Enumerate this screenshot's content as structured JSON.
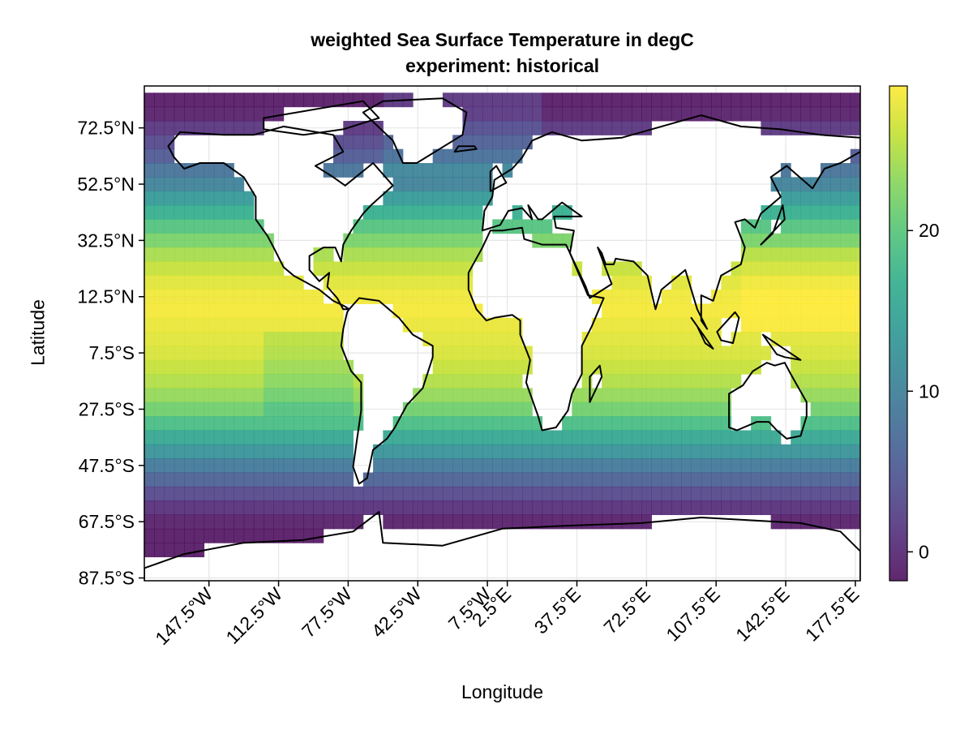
{
  "chart_data": {
    "type": "heatmap",
    "title": "weighted Sea Surface Temperature in degC",
    "subtitle": "experiment: historical",
    "xlabel": "Longitude",
    "ylabel": "Latitude",
    "xlim": [
      -180,
      180
    ],
    "ylim": [
      -90,
      90
    ],
    "x_ticks": [
      -147.5,
      -112.5,
      -77.5,
      -42.5,
      -7.5,
      2.5,
      37.5,
      72.5,
      107.5,
      142.5,
      177.5
    ],
    "x_tick_labels": [
      "147.5°W",
      "112.5°W",
      "77.5°W",
      "42.5°W",
      "7.5°W",
      "2.5°E",
      "37.5°E",
      "72.5°E",
      "107.5°E",
      "142.5°E",
      "177.5°E"
    ],
    "y_ticks": [
      72.5,
      52.5,
      32.5,
      12.5,
      -7.5,
      -27.5,
      -47.5,
      -67.5,
      -87.5
    ],
    "y_tick_labels": [
      "72.5°N",
      "52.5°N",
      "32.5°N",
      "12.5°N",
      "7.5°S",
      "27.5°S",
      "47.5°S",
      "67.5°S",
      "87.5°S"
    ],
    "grid": true,
    "grid_resolution_deg": 5,
    "colormap": "viridis",
    "colorbar": {
      "range": [
        -1.8,
        29
      ],
      "ticks": [
        0,
        10,
        20
      ],
      "tick_labels": [
        "0",
        "10",
        "20"
      ],
      "placement": "right"
    },
    "zonal_mean_sst_degC": [
      {
        "lat": 82.5,
        "value": -1.5
      },
      {
        "lat": 77.5,
        "value": -1.2
      },
      {
        "lat": 72.5,
        "value": 1.0
      },
      {
        "lat": 67.5,
        "value": 3.0
      },
      {
        "lat": 62.5,
        "value": 5.0
      },
      {
        "lat": 57.5,
        "value": 8.0
      },
      {
        "lat": 52.5,
        "value": 10.0
      },
      {
        "lat": 47.5,
        "value": 13.5
      },
      {
        "lat": 42.5,
        "value": 16.5
      },
      {
        "lat": 37.5,
        "value": 19.5
      },
      {
        "lat": 32.5,
        "value": 22.0
      },
      {
        "lat": 27.5,
        "value": 24.5
      },
      {
        "lat": 22.5,
        "value": 26.0
      },
      {
        "lat": 17.5,
        "value": 27.5
      },
      {
        "lat": 12.5,
        "value": 28.3
      },
      {
        "lat": 7.5,
        "value": 28.5
      },
      {
        "lat": 2.5,
        "value": 28.0
      },
      {
        "lat": -2.5,
        "value": 27.5
      },
      {
        "lat": -7.5,
        "value": 27.0
      },
      {
        "lat": -12.5,
        "value": 26.0
      },
      {
        "lat": -17.5,
        "value": 25.0
      },
      {
        "lat": -22.5,
        "value": 23.5
      },
      {
        "lat": -27.5,
        "value": 21.5
      },
      {
        "lat": -32.5,
        "value": 18.5
      },
      {
        "lat": -37.5,
        "value": 15.5
      },
      {
        "lat": -42.5,
        "value": 12.5
      },
      {
        "lat": -47.5,
        "value": 9.0
      },
      {
        "lat": -52.5,
        "value": 6.0
      },
      {
        "lat": -57.5,
        "value": 3.0
      },
      {
        "lat": -62.5,
        "value": 0.5
      },
      {
        "lat": -67.5,
        "value": -1.2
      },
      {
        "lat": -72.5,
        "value": -1.7
      }
    ]
  }
}
